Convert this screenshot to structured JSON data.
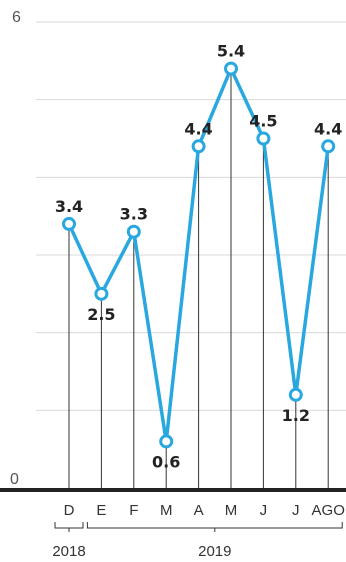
{
  "chart_data": {
    "type": "line",
    "categories": [
      "D",
      "E",
      "F",
      "M",
      "A",
      "M",
      "J",
      "J",
      "AGO"
    ],
    "values": [
      3.4,
      2.5,
      3.3,
      0.6,
      4.4,
      5.4,
      4.5,
      1.2,
      4.4
    ],
    "value_labels": [
      "3.4",
      "2.5",
      "3.3",
      "0.6",
      "4.4",
      "5.4",
      "4.5",
      "1.2",
      "4.4"
    ],
    "label_position": [
      "above",
      "below",
      "above",
      "below",
      "above",
      "above",
      "above",
      "below",
      "above"
    ],
    "y_ticks": [
      "0",
      "6"
    ],
    "ylim": [
      0,
      6
    ],
    "grid": true,
    "year_groups": [
      {
        "label": "2018",
        "from": 0,
        "to": 0
      },
      {
        "label": "2019",
        "from": 1,
        "to": 8
      }
    ],
    "colors": {
      "line": "#29a8df",
      "marker_fill": "#ffffff",
      "grid": "#d9d9d9",
      "baseline": "#222222",
      "drop_line": "#333333"
    }
  }
}
